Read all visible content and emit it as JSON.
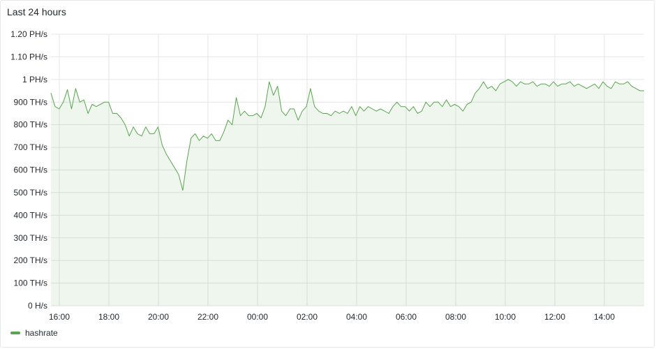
{
  "panel": {
    "title": "Last 24 hours"
  },
  "legend": {
    "label": "hashrate"
  },
  "colors": {
    "series": "#56a64b",
    "fill": "rgba(86,166,75,0.10)",
    "grid": "#e4e5e6"
  },
  "chart_data": {
    "type": "area",
    "title": "Last 24 hours",
    "xlabel": "",
    "ylabel": "",
    "y_unit": "TH/s",
    "y_ticks": [
      {
        "value": 0,
        "label": "0 H/s"
      },
      {
        "value": 100,
        "label": "100 TH/s"
      },
      {
        "value": 200,
        "label": "200 TH/s"
      },
      {
        "value": 300,
        "label": "300 TH/s"
      },
      {
        "value": 400,
        "label": "400 TH/s"
      },
      {
        "value": 500,
        "label": "500 TH/s"
      },
      {
        "value": 600,
        "label": "600 TH/s"
      },
      {
        "value": 700,
        "label": "700 TH/s"
      },
      {
        "value": 800,
        "label": "800 TH/s"
      },
      {
        "value": 900,
        "label": "900 TH/s"
      },
      {
        "value": 1000,
        "label": "1 PH/s"
      },
      {
        "value": 1100,
        "label": "1.10 PH/s"
      },
      {
        "value": 1200,
        "label": "1.20 PH/s"
      }
    ],
    "ylim": [
      0,
      1200
    ],
    "x_ticks": [
      "16:00",
      "18:00",
      "20:00",
      "22:00",
      "00:00",
      "02:00",
      "04:00",
      "06:00",
      "08:00",
      "10:00",
      "12:00",
      "14:00"
    ],
    "x_range": [
      "15:40",
      "15:40 (+1d)"
    ],
    "grid": true,
    "legend_position": "bottom-left",
    "series": [
      {
        "name": "hashrate",
        "points": [
          [
            "15:40",
            940
          ],
          [
            "15:50",
            880
          ],
          [
            "16:00",
            870
          ],
          [
            "16:10",
            900
          ],
          [
            "16:20",
            955
          ],
          [
            "16:30",
            870
          ],
          [
            "16:40",
            960
          ],
          [
            "16:50",
            900
          ],
          [
            "17:00",
            910
          ],
          [
            "17:10",
            850
          ],
          [
            "17:20",
            890
          ],
          [
            "17:30",
            880
          ],
          [
            "17:40",
            890
          ],
          [
            "17:50",
            900
          ],
          [
            "18:00",
            900
          ],
          [
            "18:10",
            850
          ],
          [
            "18:20",
            850
          ],
          [
            "18:30",
            830
          ],
          [
            "18:40",
            800
          ],
          [
            "18:50",
            750
          ],
          [
            "19:00",
            790
          ],
          [
            "19:10",
            760
          ],
          [
            "19:20",
            750
          ],
          [
            "19:30",
            790
          ],
          [
            "19:40",
            760
          ],
          [
            "19:50",
            760
          ],
          [
            "20:00",
            790
          ],
          [
            "20:10",
            710
          ],
          [
            "20:20",
            670
          ],
          [
            "20:30",
            640
          ],
          [
            "20:40",
            610
          ],
          [
            "20:50",
            580
          ],
          [
            "21:00",
            510
          ],
          [
            "21:10",
            640
          ],
          [
            "21:20",
            740
          ],
          [
            "21:30",
            760
          ],
          [
            "21:40",
            730
          ],
          [
            "21:50",
            750
          ],
          [
            "22:00",
            740
          ],
          [
            "22:10",
            760
          ],
          [
            "22:20",
            730
          ],
          [
            "22:30",
            730
          ],
          [
            "22:40",
            770
          ],
          [
            "22:50",
            820
          ],
          [
            "23:00",
            800
          ],
          [
            "23:10",
            920
          ],
          [
            "23:20",
            840
          ],
          [
            "23:30",
            860
          ],
          [
            "23:40",
            840
          ],
          [
            "23:50",
            840
          ],
          [
            "00:00",
            850
          ],
          [
            "00:10",
            830
          ],
          [
            "00:20",
            880
          ],
          [
            "00:30",
            990
          ],
          [
            "00:40",
            930
          ],
          [
            "00:50",
            970
          ],
          [
            "01:00",
            860
          ],
          [
            "01:10",
            840
          ],
          [
            "01:20",
            870
          ],
          [
            "01:30",
            870
          ],
          [
            "01:40",
            820
          ],
          [
            "01:50",
            860
          ],
          [
            "02:00",
            880
          ],
          [
            "02:10",
            960
          ],
          [
            "02:20",
            880
          ],
          [
            "02:30",
            860
          ],
          [
            "02:40",
            850
          ],
          [
            "02:50",
            850
          ],
          [
            "03:00",
            840
          ],
          [
            "03:10",
            860
          ],
          [
            "03:20",
            850
          ],
          [
            "03:30",
            860
          ],
          [
            "03:40",
            850
          ],
          [
            "03:50",
            880
          ],
          [
            "04:00",
            840
          ],
          [
            "04:10",
            880
          ],
          [
            "04:20",
            860
          ],
          [
            "04:30",
            880
          ],
          [
            "04:40",
            870
          ],
          [
            "04:50",
            860
          ],
          [
            "05:00",
            870
          ],
          [
            "05:10",
            860
          ],
          [
            "05:20",
            850
          ],
          [
            "05:30",
            880
          ],
          [
            "05:40",
            900
          ],
          [
            "05:50",
            880
          ],
          [
            "06:00",
            880
          ],
          [
            "06:10",
            860
          ],
          [
            "06:20",
            880
          ],
          [
            "06:30",
            850
          ],
          [
            "06:40",
            860
          ],
          [
            "06:50",
            900
          ],
          [
            "07:00",
            880
          ],
          [
            "07:10",
            900
          ],
          [
            "07:20",
            900
          ],
          [
            "07:30",
            880
          ],
          [
            "07:40",
            910
          ],
          [
            "07:50",
            880
          ],
          [
            "08:00",
            890
          ],
          [
            "08:10",
            880
          ],
          [
            "08:20",
            860
          ],
          [
            "08:30",
            890
          ],
          [
            "08:40",
            900
          ],
          [
            "08:50",
            940
          ],
          [
            "09:00",
            960
          ],
          [
            "09:10",
            990
          ],
          [
            "09:20",
            960
          ],
          [
            "09:30",
            970
          ],
          [
            "09:40",
            950
          ],
          [
            "09:50",
            980
          ],
          [
            "10:00",
            990
          ],
          [
            "10:10",
            1000
          ],
          [
            "10:20",
            990
          ],
          [
            "10:30",
            970
          ],
          [
            "10:40",
            990
          ],
          [
            "10:50",
            980
          ],
          [
            "11:00",
            980
          ],
          [
            "11:10",
            990
          ],
          [
            "11:20",
            970
          ],
          [
            "11:30",
            980
          ],
          [
            "11:40",
            980
          ],
          [
            "11:50",
            970
          ],
          [
            "12:00",
            990
          ],
          [
            "12:10",
            970
          ],
          [
            "12:20",
            980
          ],
          [
            "12:30",
            980
          ],
          [
            "12:40",
            990
          ],
          [
            "12:50",
            970
          ],
          [
            "13:00",
            980
          ],
          [
            "13:10",
            970
          ],
          [
            "13:20",
            960
          ],
          [
            "13:30",
            970
          ],
          [
            "13:40",
            980
          ],
          [
            "13:50",
            960
          ],
          [
            "14:00",
            990
          ],
          [
            "14:10",
            970
          ],
          [
            "14:20",
            960
          ],
          [
            "14:30",
            990
          ],
          [
            "14:40",
            980
          ],
          [
            "14:50",
            980
          ],
          [
            "15:00",
            990
          ],
          [
            "15:10",
            970
          ],
          [
            "15:20",
            960
          ],
          [
            "15:30",
            950
          ],
          [
            "15:40",
            950
          ]
        ]
      }
    ]
  }
}
